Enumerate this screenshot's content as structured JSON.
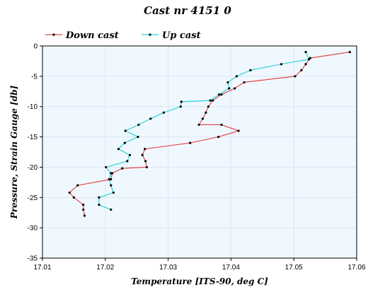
{
  "chart_data": {
    "type": "line",
    "title": "Cast nr 4151 0",
    "xlabel": "Temperature [ITS-90, deg C]",
    "ylabel": "Pressure, Strain Gauge [db]",
    "xlim": [
      17.01,
      17.06
    ],
    "ylim": [
      -35,
      0
    ],
    "x_ticks": [
      "17.01",
      "17.02",
      "17.03",
      "17.04",
      "17.05",
      "17.06"
    ],
    "y_ticks": [
      "0",
      "-5",
      "-10",
      "-15",
      "-20",
      "-25",
      "-30",
      "-35"
    ],
    "grid": true,
    "legend_position": "top",
    "colors": {
      "plot_background": "#f0f8ff",
      "grid": "#d9e6f2"
    },
    "series": [
      {
        "name": "Down cast",
        "color": "#e04a4a",
        "points": [
          [
            17.0589,
            -1.0
          ],
          [
            17.0526,
            -2.0
          ],
          [
            17.0519,
            -3.0
          ],
          [
            17.0512,
            -4.0
          ],
          [
            17.0502,
            -5.0
          ],
          [
            17.0421,
            -6.0
          ],
          [
            17.0406,
            -7.0
          ],
          [
            17.0385,
            -8.0
          ],
          [
            17.0371,
            -9.0
          ],
          [
            17.0364,
            -10.0
          ],
          [
            17.036,
            -11.0
          ],
          [
            17.0355,
            -12.0
          ],
          [
            17.0349,
            -13.0
          ],
          [
            17.0385,
            -13.0
          ],
          [
            17.0412,
            -14.0
          ],
          [
            17.038,
            -15.0
          ],
          [
            17.0335,
            -16.0
          ],
          [
            17.0263,
            -17.0
          ],
          [
            17.0259,
            -18.0
          ],
          [
            17.0264,
            -19.0
          ],
          [
            17.0266,
            -20.0
          ],
          [
            17.0227,
            -20.2
          ],
          [
            17.0211,
            -21.0
          ],
          [
            17.0209,
            -22.0
          ],
          [
            17.0156,
            -23.0
          ],
          [
            17.0143,
            -24.2
          ],
          [
            17.015,
            -25.0
          ],
          [
            17.0165,
            -26.2
          ],
          [
            17.0165,
            -27.0
          ],
          [
            17.0167,
            -28.0
          ]
        ]
      },
      {
        "name": "Up cast",
        "color": "#2ad2d8",
        "points": [
          [
            17.0519,
            -1.0
          ],
          [
            17.0524,
            -2.2
          ],
          [
            17.048,
            -3.0
          ],
          [
            17.0431,
            -4.0
          ],
          [
            17.0409,
            -5.0
          ],
          [
            17.0395,
            -6.0
          ],
          [
            17.0397,
            -7.0
          ],
          [
            17.0381,
            -8.0
          ],
          [
            17.0367,
            -9.0
          ],
          [
            17.0321,
            -9.2
          ],
          [
            17.032,
            -10.0
          ],
          [
            17.0293,
            -11.0
          ],
          [
            17.0272,
            -12.0
          ],
          [
            17.0253,
            -13.0
          ],
          [
            17.0232,
            -14.0
          ],
          [
            17.0252,
            -15.0
          ],
          [
            17.0231,
            -16.0
          ],
          [
            17.0221,
            -17.0
          ],
          [
            17.0239,
            -18.0
          ],
          [
            17.0235,
            -19.0
          ],
          [
            17.0201,
            -20.0
          ],
          [
            17.0209,
            -21.0
          ],
          [
            17.0206,
            -22.0
          ],
          [
            17.0209,
            -23.0
          ],
          [
            17.0213,
            -24.2
          ],
          [
            17.019,
            -25.0
          ],
          [
            17.019,
            -26.2
          ],
          [
            17.0209,
            -27.0
          ]
        ]
      }
    ]
  }
}
